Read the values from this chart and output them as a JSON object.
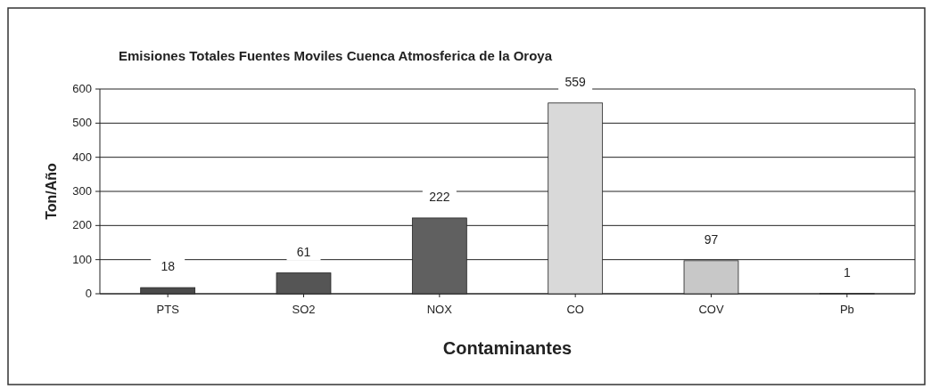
{
  "chart_data": {
    "type": "bar",
    "title": "Emisiones  Totales Fuentes Moviles Cuenca Atmosferica de la Oroya",
    "xlabel": "Contaminantes",
    "ylabel": "Ton/Año",
    "categories": [
      "PTS",
      "SO2",
      "NOX",
      "CO",
      "COV",
      "Pb"
    ],
    "values": [
      18,
      61,
      222,
      559,
      97,
      1
    ],
    "colors": [
      "#4a4a4a",
      "#555555",
      "#606060",
      "#d9d9d9",
      "#c8c8c8",
      "#c0c0c0"
    ],
    "ylim": [
      0,
      600
    ],
    "yticks": [
      0,
      100,
      200,
      300,
      400,
      500,
      600
    ],
    "grid": "y",
    "data_labels": true
  }
}
